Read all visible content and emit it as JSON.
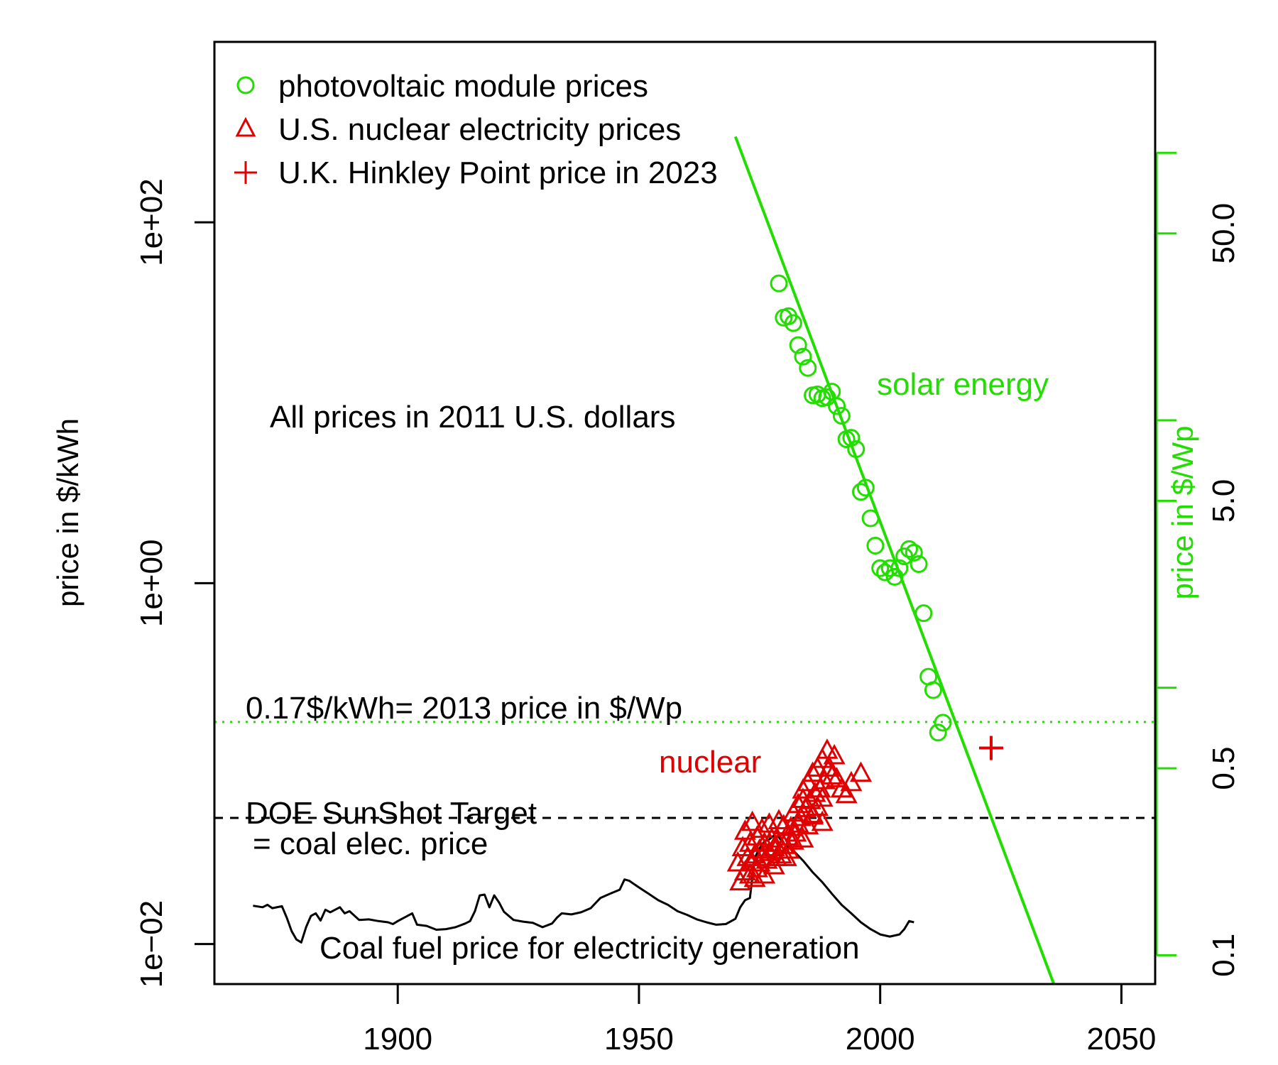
{
  "chart_data": {
    "type": "scatter",
    "title": "",
    "xlabel": "",
    "ylabel": "price in $/kWh",
    "y2label": "price in $/Wp",
    "xlim": [
      1862,
      2057
    ],
    "ylim": [
      0.006,
      1000
    ],
    "ylog": true,
    "y2lim": [
      0.078,
      260
    ],
    "y2log": true,
    "grid": false,
    "legend_position": "top-left",
    "x_ticks": [
      1900,
      1950,
      2000,
      2050
    ],
    "x_tick_labels": [
      "1900",
      "1950",
      "2000",
      "2050"
    ],
    "y_ticks": [
      0.01,
      1,
      100
    ],
    "y_tick_labels": [
      "1e−02",
      "1e+00",
      "1e+02"
    ],
    "y2_ticks": [
      0.1,
      0.5,
      1,
      5,
      10,
      50,
      100
    ],
    "y2_tick_labels": [
      "0.1",
      "0.5",
      "",
      "5.0",
      "",
      "50.0",
      ""
    ],
    "colors": {
      "solar": "#22dd00",
      "nuclear": "#e00000",
      "coal": "#000000"
    },
    "legend": [
      {
        "label": "photovoltaic module prices",
        "marker": "circle",
        "color": "#22dd00"
      },
      {
        "label": "U.S. nuclear electricity prices",
        "marker": "triangle",
        "color": "#e00000"
      },
      {
        "label": "U.K. Hinkley Point price in 2023",
        "marker": "plus",
        "color": "#e00000"
      }
    ],
    "annotations": {
      "all_prices": "All prices in 2011 U.S. dollars",
      "solar_energy": "solar energy",
      "ref_2013": "0.17$/kWh= 2013 price in $/Wp",
      "nuclear": "nuclear",
      "sunshot_1": "DOE SunShot Target",
      "sunshot_2": "= coal elec. price",
      "coal_fuel": "Coal fuel price for electricity generation"
    },
    "series": [
      {
        "name": "photovoltaic module prices",
        "axis": "right",
        "marker": "circle",
        "x": [
          1979,
          1980,
          1981,
          1982,
          1983,
          1984,
          1985,
          1986,
          1987,
          1988,
          1989,
          1990,
          1991,
          1992,
          1993,
          1994,
          1995,
          1996,
          1997,
          1998,
          1999,
          2000,
          2001,
          2002,
          2003,
          2004,
          2005,
          2006,
          2007,
          2008,
          2009,
          2010,
          2011,
          2012,
          2013
        ],
        "y": [
          32.5,
          24.2,
          24.5,
          23.1,
          19.1,
          17.3,
          15.7,
          12.4,
          12.5,
          12.1,
          12.2,
          12.8,
          11.3,
          10.4,
          8.5,
          8.6,
          7.8,
          5.4,
          5.6,
          4.3,
          3.4,
          2.8,
          2.7,
          2.8,
          2.6,
          2.8,
          3.1,
          3.3,
          3.2,
          2.9,
          1.9,
          1.1,
          0.98,
          0.68,
          0.74
        ]
      },
      {
        "name": "photovoltaic price trend",
        "axis": "right",
        "type": "line",
        "x": [
          1970,
          2036
        ],
        "y": [
          115,
          0.078
        ]
      },
      {
        "name": "U.S. nuclear electricity prices",
        "axis": "left",
        "marker": "triangle",
        "x": [
          1970.5,
          1971,
          1971.5,
          1972,
          1972,
          1972.5,
          1973,
          1973,
          1973.5,
          1973.5,
          1974,
          1974,
          1974.5,
          1974.5,
          1975,
          1975,
          1975.5,
          1975.5,
          1976,
          1976,
          1976.5,
          1977,
          1977,
          1977.5,
          1978,
          1978,
          1978.5,
          1979,
          1979,
          1979.5,
          1980,
          1980.5,
          1981,
          1981,
          1981.5,
          1982,
          1982,
          1982.5,
          1983,
          1983,
          1983.5,
          1984,
          1984,
          1984.5,
          1985,
          1985,
          1985.5,
          1986,
          1986,
          1986.5,
          1987,
          1987,
          1987.5,
          1988,
          1988,
          1988.5,
          1989,
          1989.5,
          1990,
          1990.5,
          1991,
          1992,
          1993,
          1994,
          1996,
          1980,
          1984,
          1986,
          1988
        ],
        "y": [
          0.028,
          0.022,
          0.034,
          0.025,
          0.042,
          0.03,
          0.024,
          0.036,
          0.028,
          0.047,
          0.023,
          0.031,
          0.039,
          0.026,
          0.033,
          0.028,
          0.043,
          0.03,
          0.024,
          0.036,
          0.029,
          0.046,
          0.032,
          0.038,
          0.027,
          0.034,
          0.03,
          0.048,
          0.036,
          0.031,
          0.035,
          0.03,
          0.039,
          0.033,
          0.044,
          0.037,
          0.053,
          0.041,
          0.046,
          0.059,
          0.05,
          0.038,
          0.071,
          0.056,
          0.045,
          0.078,
          0.062,
          0.051,
          0.088,
          0.068,
          0.057,
          0.094,
          0.072,
          0.064,
          0.105,
          0.08,
          0.118,
          0.094,
          0.085,
          0.11,
          0.082,
          0.072,
          0.067,
          0.078,
          0.088,
          0.045,
          0.063,
          0.052,
          0.047
        ]
      },
      {
        "name": "U.K. Hinkley Point price in 2023",
        "axis": "left",
        "marker": "plus",
        "x": [
          2023
        ],
        "y": [
          0.122
        ]
      },
      {
        "name": "Coal fuel price for electricity generation",
        "axis": "left",
        "type": "line",
        "x": [
          1870,
          1872,
          1873,
          1874,
          1876,
          1877,
          1878,
          1879,
          1880,
          1881,
          1882,
          1883,
          1884,
          1885,
          1886,
          1888,
          1889,
          1890,
          1892,
          1894,
          1896,
          1898,
          1899,
          1900,
          1902,
          1903,
          1904,
          1906,
          1908,
          1910,
          1912,
          1914,
          1915,
          1916,
          1917,
          1918,
          1919,
          1920,
          1921,
          1922,
          1924,
          1926,
          1928,
          1930,
          1932,
          1933,
          1934,
          1936,
          1938,
          1940,
          1942,
          1944,
          1946,
          1947,
          1948,
          1950,
          1952,
          1954,
          1956,
          1958,
          1960,
          1962,
          1964,
          1966,
          1968,
          1970,
          1971,
          1972,
          1973,
          1974,
          1975,
          1976,
          1977,
          1978,
          1979,
          1980,
          1982,
          1984,
          1986,
          1988,
          1990,
          1992,
          1994,
          1996,
          1998,
          2000,
          2002,
          2004,
          2005,
          2006,
          2007
        ],
        "y": [
          0.0163,
          0.016,
          0.0165,
          0.0158,
          0.0162,
          0.014,
          0.0118,
          0.0106,
          0.0102,
          0.0124,
          0.0143,
          0.0148,
          0.0135,
          0.0155,
          0.015,
          0.016,
          0.0148,
          0.0152,
          0.0136,
          0.0137,
          0.0134,
          0.0132,
          0.0129,
          0.0134,
          0.0143,
          0.0148,
          0.0128,
          0.0126,
          0.012,
          0.0121,
          0.0124,
          0.013,
          0.0134,
          0.0152,
          0.0186,
          0.0188,
          0.016,
          0.0186,
          0.017,
          0.0151,
          0.0136,
          0.0133,
          0.0131,
          0.0124,
          0.013,
          0.014,
          0.0148,
          0.0146,
          0.015,
          0.0158,
          0.018,
          0.019,
          0.02,
          0.0228,
          0.0224,
          0.0206,
          0.019,
          0.0175,
          0.0165,
          0.0152,
          0.0145,
          0.0137,
          0.0132,
          0.0128,
          0.0129,
          0.0138,
          0.016,
          0.0175,
          0.018,
          0.03,
          0.034,
          0.037,
          0.038,
          0.04,
          0.039,
          0.036,
          0.033,
          0.029,
          0.025,
          0.022,
          0.019,
          0.0165,
          0.0148,
          0.0132,
          0.0121,
          0.0113,
          0.011,
          0.0113,
          0.0121,
          0.0134,
          0.0132
        ]
      }
    ],
    "reference_lines": [
      {
        "name": "0.17$/kWh= 2013 price in $/Wp",
        "axis": "left",
        "y": 0.17,
        "style": "dotted",
        "color": "#22dd00"
      },
      {
        "name": "DOE SunShot Target",
        "axis": "left",
        "y": 0.05,
        "style": "dashed",
        "color": "#000000"
      }
    ]
  }
}
